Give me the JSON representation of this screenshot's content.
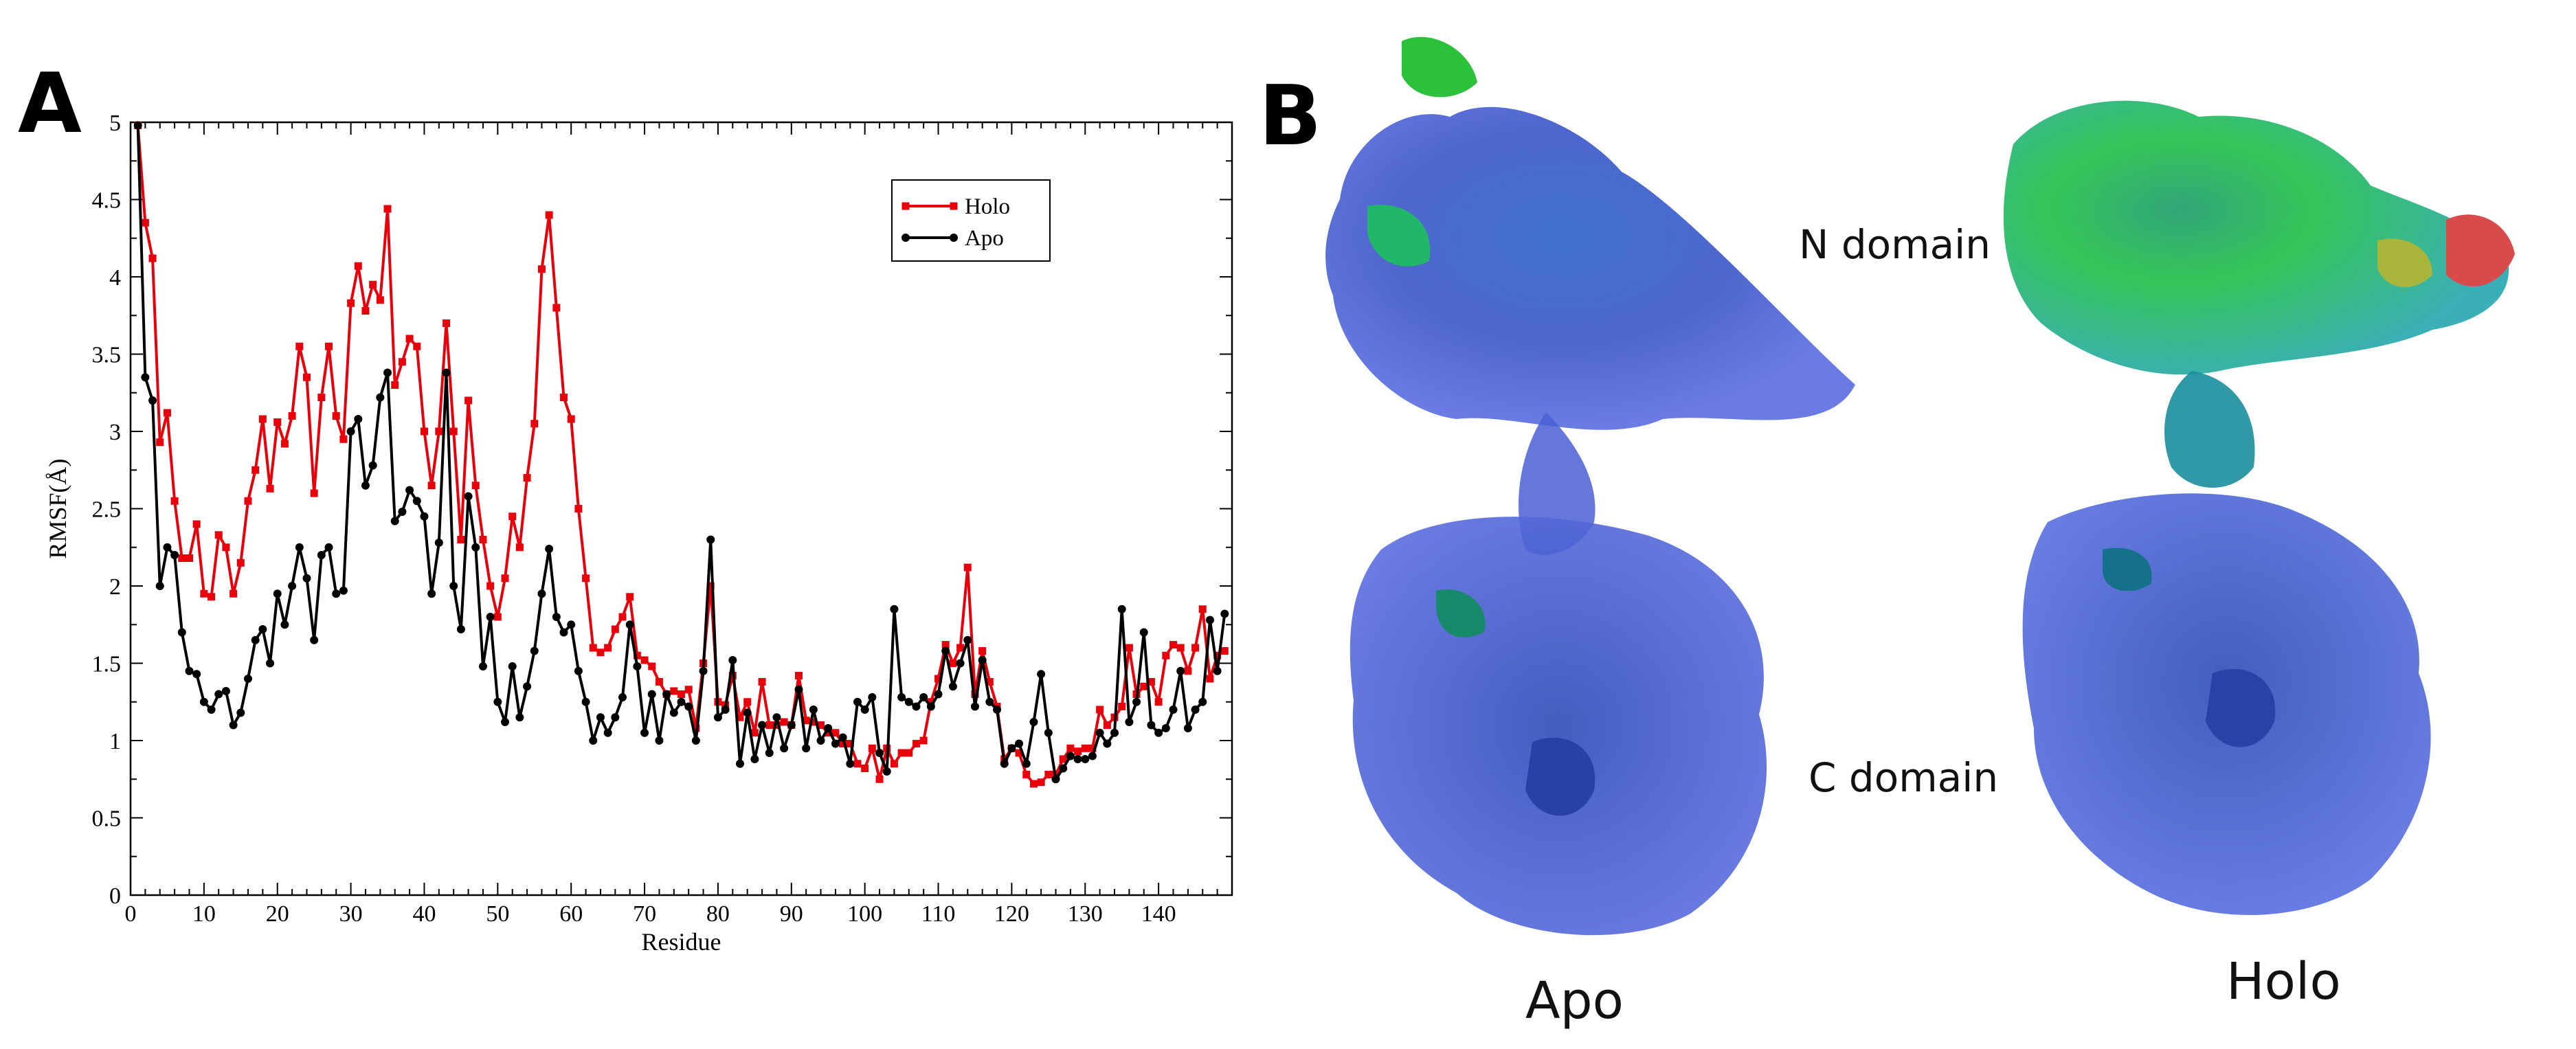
{
  "panel_labels": {
    "a": "A",
    "b": "B"
  },
  "chart_data": {
    "type": "line",
    "xlabel": "Residue",
    "ylabel": "RMSF(Å)",
    "xlim": [
      0,
      150
    ],
    "ylim": [
      0,
      5
    ],
    "xticks": [
      0,
      10,
      20,
      30,
      40,
      50,
      60,
      70,
      80,
      90,
      100,
      110,
      120,
      130,
      140
    ],
    "yticks": [
      0,
      0.5,
      1,
      1.5,
      2,
      2.5,
      3,
      3.5,
      4,
      4.5,
      5
    ],
    "ytick_labels": [
      "0",
      "0.5",
      "1",
      "1.5",
      "2",
      "2.5",
      "3",
      "3.5",
      "4",
      "4.5",
      "5"
    ],
    "grid": false,
    "legend_position": "top-right",
    "series": [
      {
        "name": "Holo",
        "color": "#e8000b",
        "marker": "square",
        "x": [
          1,
          2,
          3,
          4,
          5,
          6,
          7,
          8,
          9,
          10,
          11,
          12,
          13,
          14,
          15,
          16,
          17,
          18,
          19,
          20,
          21,
          22,
          23,
          24,
          25,
          26,
          27,
          28,
          29,
          30,
          31,
          32,
          33,
          34,
          35,
          36,
          37,
          38,
          39,
          40,
          41,
          42,
          43,
          44,
          45,
          46,
          47,
          48,
          49,
          50,
          51,
          52,
          53,
          54,
          55,
          56,
          57,
          58,
          59,
          60,
          61,
          62,
          63,
          64,
          65,
          66,
          67,
          68,
          69,
          70,
          71,
          72,
          73,
          74,
          75,
          76,
          77,
          78,
          79,
          80,
          81,
          82,
          83,
          84,
          85,
          86,
          87,
          88,
          89,
          90,
          91,
          92,
          93,
          94,
          95,
          96,
          97,
          98,
          99,
          100,
          101,
          102,
          103,
          104,
          105,
          106,
          107,
          108,
          109,
          110,
          111,
          112,
          113,
          114,
          115,
          116,
          117,
          118,
          119,
          120,
          121,
          122,
          123,
          124,
          125,
          126,
          127,
          128,
          129,
          130,
          131,
          132,
          133,
          134,
          135,
          136,
          137,
          138,
          139,
          140,
          141,
          142,
          143,
          144,
          145,
          146,
          147,
          148,
          149
        ],
        "y": [
          4.98,
          4.35,
          4.12,
          2.93,
          3.12,
          2.55,
          2.18,
          2.18,
          2.4,
          1.95,
          1.93,
          2.33,
          2.25,
          1.95,
          2.15,
          2.55,
          2.75,
          3.08,
          2.63,
          3.06,
          2.92,
          3.1,
          3.55,
          3.35,
          2.6,
          3.22,
          3.55,
          3.1,
          2.95,
          3.83,
          4.07,
          3.78,
          3.95,
          3.85,
          4.44,
          3.3,
          3.45,
          3.6,
          3.55,
          3.0,
          2.65,
          3.0,
          3.7,
          3.0,
          2.3,
          3.2,
          2.65,
          2.3,
          2.0,
          1.8,
          2.05,
          2.45,
          2.25,
          2.7,
          3.05,
          4.05,
          4.4,
          3.8,
          3.22,
          3.08,
          2.5,
          2.05,
          1.6,
          1.57,
          1.6,
          1.72,
          1.8,
          1.93,
          1.55,
          1.52,
          1.48,
          1.38,
          1.3,
          1.32,
          1.3,
          1.33,
          1.08,
          1.5,
          2.0,
          1.25,
          1.23,
          1.42,
          1.15,
          1.25,
          1.05,
          1.38,
          1.1,
          1.1,
          1.12,
          1.1,
          1.42,
          1.13,
          1.12,
          1.1,
          1.05,
          1.05,
          0.98,
          0.98,
          0.85,
          0.82,
          0.95,
          0.75,
          0.95,
          0.85,
          0.92,
          0.92,
          0.98,
          1.0,
          1.25,
          1.4,
          1.62,
          1.5,
          1.6,
          2.12,
          1.3,
          1.58,
          1.38,
          1.22,
          0.88,
          0.95,
          0.92,
          0.78,
          0.72,
          0.73,
          0.78,
          0.78,
          0.88,
          0.95,
          0.93,
          0.95,
          0.95,
          1.2,
          1.1,
          1.15,
          1.22,
          1.6,
          1.3,
          1.35,
          1.38,
          1.25,
          1.55,
          1.62,
          1.6,
          1.45,
          1.6,
          1.85,
          1.4,
          1.55,
          1.58
        ]
      },
      {
        "name": "Apo",
        "color": "#000000",
        "marker": "circle",
        "x": [
          1,
          2,
          3,
          4,
          5,
          6,
          7,
          8,
          9,
          10,
          11,
          12,
          13,
          14,
          15,
          16,
          17,
          18,
          19,
          20,
          21,
          22,
          23,
          24,
          25,
          26,
          27,
          28,
          29,
          30,
          31,
          32,
          33,
          34,
          35,
          36,
          37,
          38,
          39,
          40,
          41,
          42,
          43,
          44,
          45,
          46,
          47,
          48,
          49,
          50,
          51,
          52,
          53,
          54,
          55,
          56,
          57,
          58,
          59,
          60,
          61,
          62,
          63,
          64,
          65,
          66,
          67,
          68,
          69,
          70,
          71,
          72,
          73,
          74,
          75,
          76,
          77,
          78,
          79,
          80,
          81,
          82,
          83,
          84,
          85,
          86,
          87,
          88,
          89,
          90,
          91,
          92,
          93,
          94,
          95,
          96,
          97,
          98,
          99,
          100,
          101,
          102,
          103,
          104,
          105,
          106,
          107,
          108,
          109,
          110,
          111,
          112,
          113,
          114,
          115,
          116,
          117,
          118,
          119,
          120,
          121,
          122,
          123,
          124,
          125,
          126,
          127,
          128,
          129,
          130,
          131,
          132,
          133,
          134,
          135,
          136,
          137,
          138,
          139,
          140,
          141,
          142,
          143,
          144,
          145,
          146,
          147,
          148,
          149
        ],
        "y": [
          4.98,
          3.35,
          3.2,
          2.0,
          2.25,
          2.2,
          1.7,
          1.45,
          1.43,
          1.25,
          1.2,
          1.3,
          1.32,
          1.1,
          1.18,
          1.4,
          1.65,
          1.72,
          1.5,
          1.95,
          1.75,
          2.0,
          2.25,
          2.05,
          1.65,
          2.2,
          2.25,
          1.95,
          1.97,
          3.0,
          3.08,
          2.65,
          2.78,
          3.22,
          3.38,
          2.42,
          2.48,
          2.62,
          2.55,
          2.45,
          1.95,
          2.28,
          3.38,
          2.0,
          1.72,
          2.58,
          2.25,
          1.48,
          1.8,
          1.25,
          1.12,
          1.48,
          1.15,
          1.35,
          1.58,
          1.95,
          2.24,
          1.8,
          1.7,
          1.75,
          1.45,
          1.25,
          1.0,
          1.15,
          1.05,
          1.15,
          1.28,
          1.75,
          1.48,
          1.05,
          1.3,
          1.0,
          1.3,
          1.18,
          1.25,
          1.22,
          1.0,
          1.45,
          2.3,
          1.15,
          1.2,
          1.52,
          0.85,
          1.18,
          0.88,
          1.1,
          0.92,
          1.15,
          0.95,
          1.1,
          1.33,
          0.95,
          1.2,
          1.0,
          1.08,
          0.98,
          1.02,
          0.85,
          1.25,
          1.2,
          1.28,
          0.92,
          0.8,
          1.85,
          1.28,
          1.25,
          1.22,
          1.28,
          1.22,
          1.3,
          1.58,
          1.35,
          1.5,
          1.65,
          1.22,
          1.52,
          1.25,
          1.2,
          0.85,
          0.95,
          0.98,
          0.85,
          1.12,
          1.43,
          1.05,
          0.75,
          0.82,
          0.9,
          0.88,
          0.88,
          0.9,
          1.05,
          0.98,
          1.05,
          1.85,
          1.12,
          1.25,
          1.7,
          1.1,
          1.05,
          1.08,
          1.2,
          1.45,
          1.08,
          1.2,
          1.25,
          1.78,
          1.45,
          1.82
        ]
      }
    ]
  },
  "structure_labels": {
    "n_domain": "N domain",
    "c_domain": "C domain",
    "apo": "Apo",
    "holo": "Holo"
  }
}
